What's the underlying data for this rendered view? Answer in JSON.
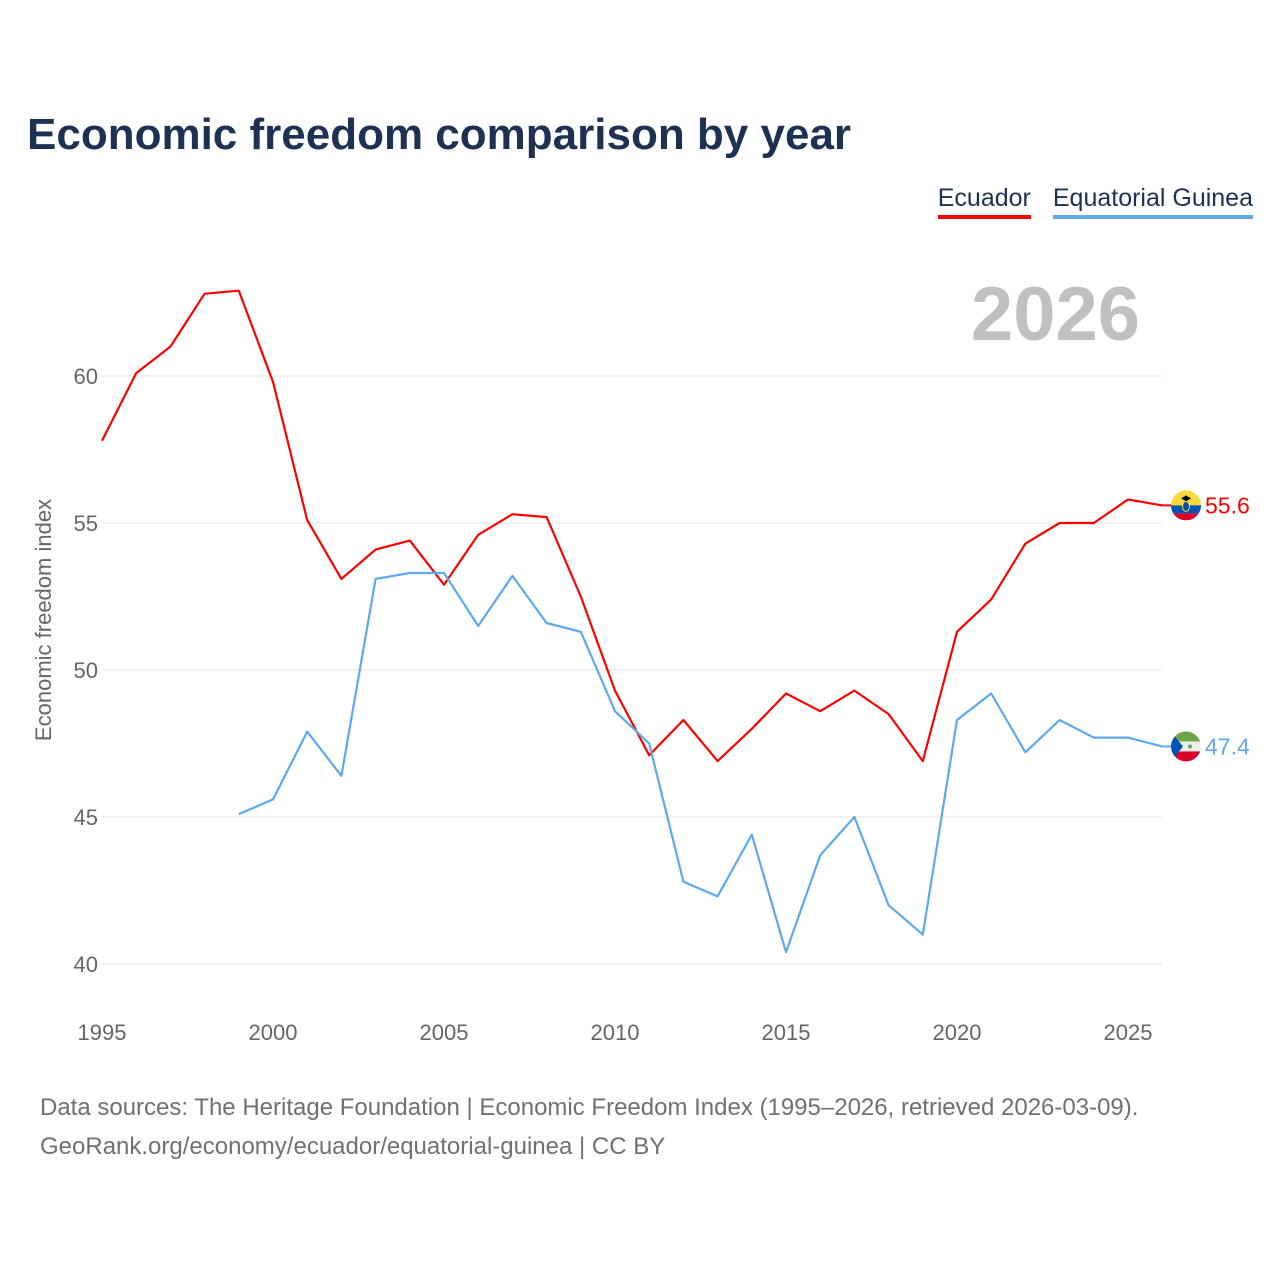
{
  "chart_data": {
    "type": "line",
    "title": "Economic freedom comparison by year",
    "xlabel": "",
    "ylabel": "Economic freedom index",
    "xlim": [
      1995,
      2026
    ],
    "ylim": [
      40,
      63
    ],
    "yticks": [
      40,
      45,
      50,
      55,
      60
    ],
    "xticks": [
      1995,
      2000,
      2005,
      2010,
      2015,
      2020,
      2025
    ],
    "grid": true,
    "legend_position": "top-right",
    "year_watermark": "2026",
    "series": [
      {
        "name": "Ecuador",
        "color": "#ff0000",
        "end_label": "55.6",
        "flag": "ecuador-flag",
        "x": [
          1995,
          1996,
          1997,
          1998,
          1999,
          2000,
          2001,
          2002,
          2003,
          2004,
          2005,
          2006,
          2007,
          2008,
          2009,
          2010,
          2011,
          2012,
          2013,
          2014,
          2015,
          2016,
          2017,
          2018,
          2019,
          2020,
          2021,
          2022,
          2023,
          2024,
          2025,
          2026
        ],
        "values": [
          57.8,
          60.1,
          61.0,
          62.8,
          62.9,
          59.8,
          55.1,
          53.1,
          54.1,
          54.4,
          52.9,
          54.6,
          55.3,
          55.2,
          52.5,
          49.3,
          47.1,
          48.3,
          46.9,
          48.0,
          49.2,
          48.6,
          49.3,
          48.5,
          46.9,
          51.3,
          52.4,
          54.3,
          55.0,
          55.0,
          55.8,
          55.6
        ]
      },
      {
        "name": "Equatorial Guinea",
        "color": "#5ea8ef",
        "end_label": "47.4",
        "flag": "equatorial-guinea-flag",
        "x": [
          1999,
          2000,
          2001,
          2002,
          2003,
          2004,
          2005,
          2006,
          2007,
          2008,
          2009,
          2010,
          2011,
          2012,
          2013,
          2014,
          2015,
          2016,
          2017,
          2018,
          2019,
          2020,
          2021,
          2022,
          2023,
          2024,
          2025,
          2026
        ],
        "values": [
          45.1,
          45.6,
          47.9,
          46.4,
          53.1,
          53.3,
          53.3,
          51.5,
          53.2,
          51.6,
          51.3,
          48.6,
          47.5,
          42.8,
          42.3,
          44.4,
          40.4,
          43.7,
          45.0,
          42.0,
          41.0,
          48.3,
          49.2,
          47.2,
          48.3,
          47.7,
          47.7,
          47.4
        ]
      }
    ]
  },
  "footer": {
    "sources": "Data sources: The Heritage Foundation | Economic Freedom Index (1995–2026, retrieved 2026-03-09).",
    "credit": "GeoRank.org/economy/ecuador/equatorial-guinea | CC BY"
  }
}
